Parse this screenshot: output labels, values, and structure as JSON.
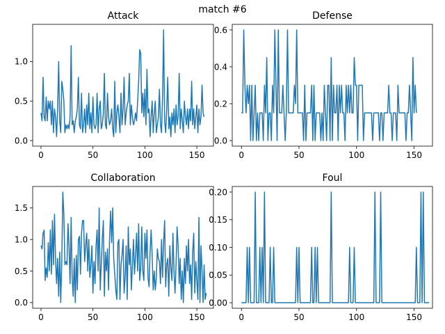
{
  "figure": {
    "suptitle": "match #6",
    "line_color": "#1f77b4"
  },
  "chart_data": [
    {
      "type": "line",
      "title": "Attack",
      "xlabel": "",
      "ylabel": "",
      "xlim": [
        -8,
        166
      ],
      "ylim": [
        -0.07,
        1.47
      ],
      "xticks": [
        0,
        50,
        100,
        150
      ],
      "xtick_labels": [
        "0",
        "50",
        "100",
        "150"
      ],
      "yticks": [
        0,
        0.5,
        1.0
      ],
      "ytick_labels": [
        "0.0",
        "0.5",
        "1.0"
      ],
      "grid": false,
      "series": [
        {
          "values": [
            0.35,
            0.25,
            0.8,
            0.3,
            0.25,
            0.55,
            0.25,
            0.5,
            0.4,
            0.5,
            0.2,
            0.5,
            0.1,
            0.4,
            0.3,
            0.05,
            0.4,
            1.0,
            0.25,
            0.1,
            0.75,
            0.65,
            0.5,
            0.1,
            0.2,
            0.15,
            0.2,
            0.15,
            0.3,
            1.2,
            0.2,
            0.25,
            0.1,
            0.25,
            0.3,
            0.4,
            0.8,
            0.2,
            0.15,
            0.6,
            0.1,
            0.2,
            0.4,
            0.1,
            0.45,
            0.2,
            0.6,
            0.15,
            0.35,
            0.1,
            0.55,
            0.2,
            0.15,
            0.2,
            0.6,
            0.1,
            0.4,
            0.5,
            0.15,
            0.2,
            0.35,
            0.85,
            0.2,
            0.15,
            0.6,
            0.3,
            0.2,
            0.25,
            0.4,
            0.15,
            0.05,
            0.75,
            0.1,
            0.35,
            0.45,
            0.3,
            0.1,
            0.6,
            0.2,
            0.4,
            0.8,
            0.2,
            0.35,
            0.45,
            0.5,
            0.85,
            0.2,
            0.45,
            0.3,
            0.2,
            0.25,
            0.35,
            0.25,
            0.5,
            0.75,
            1.15,
            1.1,
            0.35,
            0.6,
            0.3,
            0.65,
            0.2,
            0.9,
            0.35,
            0.4,
            0.05,
            0.3,
            0.5,
            0.1,
            0.35,
            0.5,
            0.1,
            0.2,
            0.3,
            0.65,
            0.2,
            0.1,
            0.55,
            1.4,
            0.25,
            0.1,
            0.4,
            0.8,
            0.15,
            0.3,
            0.05,
            0.35,
            0.2,
            0.4,
            0.1,
            0.45,
            0.2,
            0.3,
            0.85,
            0.15,
            0.4,
            0.25,
            0.1,
            0.5,
            0.3,
            0.2,
            0.4,
            0.15,
            0.4,
            0.25,
            0.75,
            0.2,
            0.4,
            0.15,
            0.3,
            0.45,
            0.1,
            0.4,
            0.2,
            0.3,
            0.7,
            0.35,
            0.3
          ]
        }
      ]
    },
    {
      "type": "line",
      "title": "Defense",
      "xlabel": "",
      "ylabel": "",
      "xlim": [
        -8,
        166
      ],
      "ylim": [
        -0.03,
        0.63
      ],
      "xticks": [
        0,
        50,
        100,
        150
      ],
      "xtick_labels": [
        "0",
        "50",
        "100",
        "150"
      ],
      "yticks": [
        0,
        0.2,
        0.4,
        0.6
      ],
      "ytick_labels": [
        "0.0",
        "0.2",
        "0.4",
        "0.6"
      ],
      "grid": false,
      "series": [
        {
          "values": [
            0.15,
            0.15,
            0.6,
            0.3,
            0.15,
            0.3,
            0.2,
            0.3,
            0,
            0.3,
            0,
            0.15,
            0.3,
            0,
            0.15,
            0,
            0.15,
            0.15,
            0.15,
            0,
            0.3,
            0.15,
            0.45,
            0,
            0.15,
            0.15,
            0,
            0.3,
            0.15,
            0.6,
            0.3,
            0,
            0.6,
            0.15,
            0.15,
            0.15,
            0.3,
            0.15,
            0,
            0.15,
            0.6,
            0.15,
            0.15,
            0.15,
            0.15,
            0.15,
            0.3,
            0.2,
            0.6,
            0.15,
            0.15,
            0.15,
            0.15,
            0.15,
            0,
            0.3,
            0,
            0.15,
            0.15,
            0.15,
            0.15,
            0.3,
            0,
            0.3,
            0,
            0.15,
            0.15,
            0.15,
            0.15,
            0,
            0.15,
            0,
            0.3,
            0.15,
            0,
            0.3,
            0.3,
            0,
            0.45,
            0,
            0.3,
            0.15,
            0.15,
            0.3,
            0,
            0.3,
            0.15,
            0.3,
            0.15,
            0.15,
            0,
            0.3,
            0.15,
            0.3,
            0.15,
            0.3,
            0.15,
            0.15,
            0.45,
            0.3,
            0.3,
            0,
            0.3,
            0.3,
            0.3,
            0.3,
            0,
            0.15,
            0.15,
            0.15,
            0.15,
            0.15,
            0.15,
            0.15,
            0,
            0.15,
            0.15,
            0.15,
            0.15,
            0.15,
            0,
            0.15,
            0.15,
            0,
            0.15,
            0.15,
            0.15,
            0.15,
            0.3,
            0.15,
            0.15,
            0,
            0.15,
            0.15,
            0.15,
            0,
            0.3,
            0.15,
            0.15,
            0.15,
            0.15,
            0.15,
            0.15,
            0,
            0.15,
            0.15,
            0.3,
            0.15,
            0,
            0.45,
            0.15,
            0.3,
            0.15
          ]
        }
      ]
    },
    {
      "type": "line",
      "title": "Collaboration",
      "xlabel": "",
      "ylabel": "",
      "xlim": [
        -8,
        166
      ],
      "ylim": [
        -0.09,
        1.84
      ],
      "xticks": [
        0,
        50,
        100,
        150
      ],
      "xtick_labels": [
        "0",
        "50",
        "100",
        "150"
      ],
      "yticks": [
        0,
        0.5,
        1.0,
        1.5
      ],
      "ytick_labels": [
        "0.0",
        "0.5",
        "1.0",
        "1.5"
      ],
      "grid": false,
      "series": [
        {
          "values": [
            0.9,
            0.85,
            1.1,
            1.15,
            0.35,
            0.55,
            0.4,
            0.95,
            0.5,
            1.15,
            0.45,
            1.3,
            0.6,
            1.4,
            0.7,
            0.3,
            0.7,
            0.1,
            0.8,
            0,
            0.65,
            1.75,
            1.4,
            0.6,
            0.65,
            0.6,
            1.25,
            0.9,
            0.3,
            1.35,
            0.4,
            0.1,
            0.7,
            0,
            0.75,
            0.2,
            1.0,
            1.05,
            0.45,
            1.1,
            1.3,
            1.3,
            0.65,
            0.9,
            1.1,
            0.5,
            1.0,
            0.4,
            0.6,
            0.9,
            0.15,
            0.65,
            0.3,
            0.9,
            1.15,
            0.5,
            1.5,
            0.2,
            0.6,
            1.0,
            1.3,
            0.1,
            0.8,
            0.5,
            0.85,
            0.2,
            1.0,
            1.45,
            0.95,
            1.5,
            0.7,
            0.45,
            0.2,
            0.05,
            0.95,
            1.0,
            0.05,
            0.6,
            0.75,
            1.0,
            0.15,
            0.4,
            0.9,
            0.05,
            1.2,
            0.6,
            0.85,
            0.2,
            0.6,
            1.0,
            0.45,
            0.75,
            1.1,
            0.5,
            1.25,
            0.35,
            0.55,
            1.2,
            0.5,
            0.35,
            1.1,
            0.7,
            1.15,
            0.4,
            0.25,
            0.8,
            1.15,
            0.75,
            0.2,
            0.5,
            0.2,
            0.4,
            0.85,
            0.7,
            0.65,
            0.3,
            1.0,
            0.4,
            0.95,
            1.3,
            0.25,
            0.6,
            0.7,
            0.1,
            0.9,
            0.55,
            0.35,
            1.1,
            0.5,
            0.15,
            0.6,
            1.2,
            0.9,
            0.3,
            0.7,
            0.05,
            0.5,
            0,
            0.7,
            0.3,
            0.9,
            0.5,
            1.0,
            0.3,
            0.6,
            0.05,
            0.8,
            1.1,
            0.15,
            0.65,
            0.35,
            0.05,
            1.35,
            0,
            0.9,
            0.5,
            0,
            0.6,
            0.05,
            0.15
          ]
        }
      ]
    },
    {
      "type": "line",
      "title": "Foul",
      "xlabel": "",
      "ylabel": "",
      "xlim": [
        -8,
        166
      ],
      "ylim": [
        -0.01,
        0.21
      ],
      "xticks": [
        0,
        50,
        100,
        150
      ],
      "xtick_labels": [
        "0",
        "50",
        "100",
        "150"
      ],
      "yticks": [
        0,
        0.05,
        0.1,
        0.15,
        0.2
      ],
      "ytick_labels": [
        "0.00",
        "0.05",
        "0.10",
        "0.15",
        "0.20"
      ],
      "grid": false,
      "series": [
        {
          "values": [
            0,
            0,
            0,
            0,
            0,
            0.1,
            0,
            0.1,
            0,
            0,
            0,
            0,
            0.2,
            0,
            0,
            0,
            0.1,
            0,
            0.1,
            0,
            0.2,
            0,
            0,
            0,
            0,
            0.1,
            0,
            0,
            0.1,
            0,
            0,
            0,
            0,
            0,
            0,
            0,
            0,
            0,
            0,
            0,
            0,
            0,
            0,
            0,
            0,
            0,
            0,
            0,
            0.1,
            0,
            0.1,
            0,
            0,
            0,
            0,
            0,
            0,
            0,
            0,
            0,
            0,
            0.1,
            0,
            0,
            0.1,
            0,
            0.1,
            0,
            0,
            0,
            0,
            0,
            0,
            0,
            0,
            0,
            0,
            0,
            0.2,
            0,
            0,
            0,
            0,
            0,
            0,
            0,
            0,
            0,
            0,
            0,
            0,
            0,
            0,
            0,
            0.1,
            0,
            0,
            0,
            0.1,
            0,
            0,
            0,
            0,
            0,
            0,
            0,
            0,
            0,
            0,
            0,
            0,
            0,
            0,
            0,
            0,
            0,
            0.2,
            0,
            0,
            0,
            0,
            0.2,
            0,
            0,
            0,
            0,
            0,
            0,
            0,
            0,
            0,
            0,
            0,
            0,
            0,
            0,
            0,
            0,
            0,
            0,
            0,
            0,
            0,
            0,
            0,
            0,
            0,
            0,
            0,
            0,
            0,
            0,
            0.1,
            0,
            0,
            0,
            0.2,
            0,
            0.2,
            0,
            0,
            0,
            0,
            0
          ]
        }
      ]
    }
  ]
}
